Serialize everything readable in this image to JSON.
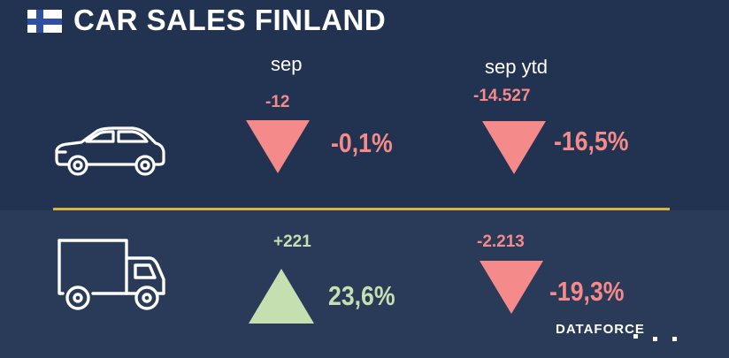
{
  "header": {
    "title": "CAR SALES FINLAND",
    "flag_icon": "finland-flag"
  },
  "columns": {
    "month_label": "sep",
    "ytd_label": "sep ytd"
  },
  "rows": [
    {
      "vehicle_icon": "car-icon",
      "month": {
        "delta": "-12",
        "percent": "-0,1%",
        "direction": "down"
      },
      "ytd": {
        "delta": "-14.527",
        "percent": "-16,5%",
        "direction": "down"
      }
    },
    {
      "vehicle_icon": "truck-icon",
      "month": {
        "delta": "+221",
        "percent": "23,6%",
        "direction": "up"
      },
      "ytd": {
        "delta": "-2.213",
        "percent": "-19,3%",
        "direction": "down"
      }
    }
  ],
  "colors": {
    "negative": "#f48a8a",
    "positive": "#c6dfb0",
    "divider": "#d6b73c",
    "background": "#233553"
  },
  "footer": {
    "brand": "DATAFORCE"
  }
}
